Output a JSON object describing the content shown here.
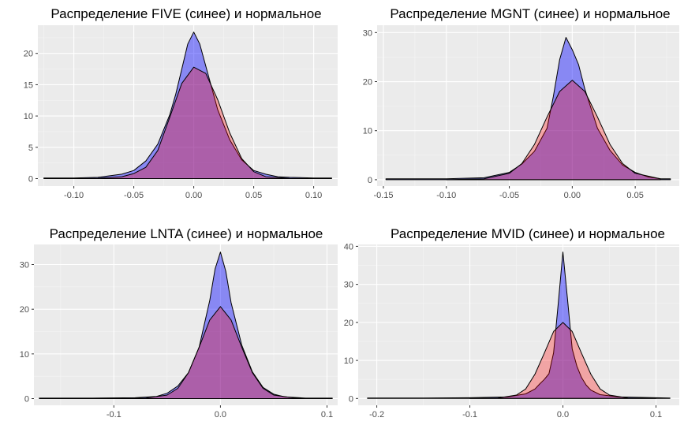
{
  "chart_data": [
    {
      "type": "area",
      "title": "Распределение FIVE (синее) и нормальное",
      "xlim": [
        -0.13,
        0.12
      ],
      "ylim": [
        -1.2,
        24.5
      ],
      "x_ticks": [
        -0.1,
        -0.05,
        0.0,
        0.05,
        0.1
      ],
      "x_tick_labels": [
        "-0.10",
        "-0.05",
        "0.00",
        "0.05",
        "0.10"
      ],
      "y_ticks": [
        0,
        5,
        10,
        15,
        20
      ],
      "y_tick_labels": [
        "0",
        "5",
        "10",
        "15",
        "20"
      ],
      "grid": true,
      "series": [
        {
          "color": "#0000ff",
          "x": [
            -0.125,
            -0.1,
            -0.08,
            -0.06,
            -0.05,
            -0.04,
            -0.03,
            -0.02,
            -0.015,
            -0.01,
            -0.005,
            0.0,
            0.005,
            0.01,
            0.015,
            0.02,
            0.03,
            0.04,
            0.05,
            0.06,
            0.07,
            0.08,
            0.1,
            0.115
          ],
          "y": [
            0.1,
            0.1,
            0.2,
            0.7,
            1.3,
            2.8,
            5.5,
            10.2,
            13.5,
            17.5,
            21.5,
            23.4,
            21.5,
            18.0,
            14.5,
            11.0,
            6.2,
            3.0,
            1.3,
            0.7,
            0.3,
            0.2,
            0.1,
            0.1
          ]
        },
        {
          "color": "#ff0000",
          "x": [
            -0.1,
            -0.08,
            -0.06,
            -0.05,
            -0.04,
            -0.03,
            -0.02,
            -0.01,
            0.0,
            0.01,
            0.02,
            0.03,
            0.04,
            0.05,
            0.06,
            0.08,
            0.1
          ],
          "y": [
            0.0,
            0.05,
            0.3,
            0.8,
            1.8,
            4.5,
            9.8,
            15.2,
            17.8,
            16.8,
            12.6,
            7.3,
            3.2,
            1.1,
            0.3,
            0.02,
            0.0
          ]
        }
      ]
    },
    {
      "type": "area",
      "title": "Распределение MGNT (синее) и нормальное",
      "xlim": [
        -0.155,
        0.085
      ],
      "ylim": [
        -1.3,
        31.5
      ],
      "x_ticks": [
        -0.15,
        -0.1,
        -0.05,
        0.0,
        0.05
      ],
      "x_tick_labels": [
        "-0.15",
        "-0.10",
        "-0.05",
        "0.00",
        "0.05"
      ],
      "y_ticks": [
        0,
        10,
        20,
        30
      ],
      "y_tick_labels": [
        "0",
        "10",
        "20",
        "30"
      ],
      "grid": true,
      "series": [
        {
          "color": "#0000ff",
          "x": [
            -0.148,
            -0.1,
            -0.07,
            -0.05,
            -0.04,
            -0.03,
            -0.02,
            -0.015,
            -0.01,
            -0.005,
            0.0,
            0.005,
            0.01,
            0.015,
            0.02,
            0.03,
            0.04,
            0.05,
            0.06,
            0.07,
            0.078
          ],
          "y": [
            0.2,
            0.2,
            0.4,
            1.5,
            3.2,
            5.8,
            10.5,
            17.0,
            24.5,
            29.0,
            26.5,
            23.5,
            18.5,
            14.5,
            10.5,
            6.0,
            3.0,
            1.5,
            0.6,
            0.2,
            0.2
          ]
        },
        {
          "color": "#ff0000",
          "x": [
            -0.1,
            -0.07,
            -0.05,
            -0.04,
            -0.03,
            -0.02,
            -0.01,
            0.0,
            0.01,
            0.02,
            0.03,
            0.04,
            0.05,
            0.07
          ],
          "y": [
            0.0,
            0.2,
            1.3,
            3.3,
            7.2,
            12.8,
            18.0,
            20.3,
            18.0,
            12.8,
            7.2,
            3.3,
            1.3,
            0.2
          ]
        }
      ]
    },
    {
      "type": "area",
      "title": "Распределение LNTA (синее) и нормальное",
      "xlim": [
        -0.175,
        0.11
      ],
      "ylim": [
        -1.5,
        34.5
      ],
      "x_ticks": [
        -0.1,
        0.0,
        0.1
      ],
      "x_tick_labels": [
        "-0.1",
        "0.0",
        "0.1"
      ],
      "y_ticks": [
        0,
        10,
        20,
        30
      ],
      "y_tick_labels": [
        "0",
        "10",
        "20",
        "30"
      ],
      "grid": true,
      "series": [
        {
          "color": "#0000ff",
          "x": [
            -0.17,
            -0.12,
            -0.08,
            -0.06,
            -0.05,
            -0.04,
            -0.03,
            -0.02,
            -0.01,
            -0.005,
            0.0,
            0.005,
            0.01,
            0.02,
            0.03,
            0.04,
            0.05,
            0.06,
            0.08,
            0.105
          ],
          "y": [
            0.1,
            0.1,
            0.2,
            0.5,
            1.2,
            2.8,
            5.8,
            11.5,
            22.0,
            29.0,
            32.8,
            28.5,
            21.5,
            12.0,
            6.0,
            2.5,
            1.0,
            0.4,
            0.1,
            0.1
          ]
        },
        {
          "color": "#ff0000",
          "x": [
            -0.1,
            -0.07,
            -0.05,
            -0.04,
            -0.03,
            -0.02,
            -0.01,
            0.0,
            0.01,
            0.02,
            0.03,
            0.04,
            0.05,
            0.07,
            0.1
          ],
          "y": [
            0.0,
            0.1,
            0.8,
            2.3,
            5.8,
            11.5,
            17.6,
            20.6,
            17.6,
            11.5,
            5.8,
            2.3,
            0.8,
            0.1,
            0.0
          ]
        }
      ]
    },
    {
      "type": "area",
      "title": "Распределение MVID (синее) и нормальное",
      "xlim": [
        -0.22,
        0.125
      ],
      "ylim": [
        -1.8,
        40.5
      ],
      "x_ticks": [
        -0.2,
        -0.1,
        0.0,
        0.1
      ],
      "x_tick_labels": [
        "-0.2",
        "-0.1",
        "0.0",
        "0.1"
      ],
      "y_ticks": [
        0,
        10,
        20,
        30,
        40
      ],
      "y_tick_labels": [
        "0",
        "10",
        "20",
        "30",
        "40"
      ],
      "grid": true,
      "series": [
        {
          "color": "#0000ff",
          "x": [
            -0.21,
            -0.15,
            -0.1,
            -0.06,
            -0.04,
            -0.03,
            -0.025,
            -0.02,
            -0.015,
            -0.01,
            -0.005,
            0.0,
            0.005,
            0.01,
            0.015,
            0.02,
            0.025,
            0.03,
            0.04,
            0.06,
            0.08,
            0.115
          ],
          "y": [
            0.1,
            0.1,
            0.2,
            0.4,
            1.2,
            2.5,
            3.8,
            5.0,
            6.5,
            12.0,
            25.0,
            38.5,
            26.0,
            13.0,
            8.5,
            5.5,
            3.5,
            2.2,
            1.0,
            0.4,
            0.3,
            0.1
          ]
        },
        {
          "color": "#ff0000",
          "x": [
            -0.1,
            -0.07,
            -0.05,
            -0.04,
            -0.03,
            -0.02,
            -0.01,
            0.0,
            0.01,
            0.02,
            0.03,
            0.04,
            0.05,
            0.07,
            0.1
          ],
          "y": [
            0.0,
            0.1,
            0.9,
            2.5,
            6.4,
            11.9,
            17.6,
            20.0,
            17.6,
            11.9,
            6.4,
            2.5,
            0.9,
            0.1,
            0.0
          ]
        }
      ]
    }
  ]
}
